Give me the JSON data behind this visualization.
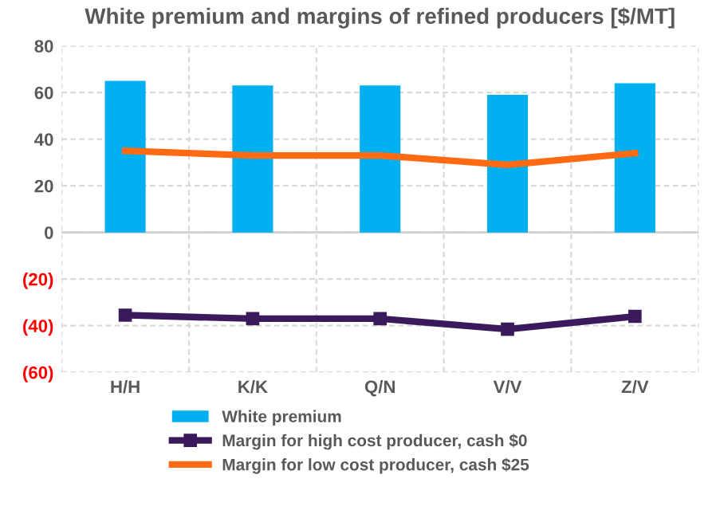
{
  "chart_data": {
    "type": "bar",
    "title": "White premium and margins of refined producers [$/MT]",
    "categories": [
      "H/H",
      "K/K",
      "Q/N",
      "V/V",
      "Z/V"
    ],
    "series": [
      {
        "name": "White premium",
        "color": "#00b0f0",
        "values": [
          65,
          63,
          63,
          59,
          64
        ]
      },
      {
        "name": "Margin for high cost producer, cash $0",
        "type": "line",
        "marker": "square",
        "color": "#3a1a5c",
        "values": [
          -35.5,
          -37,
          -37,
          -41.5,
          -36
        ]
      },
      {
        "name": "Margin for low cost producer, cash $25",
        "type": "line",
        "marker": "none",
        "color": "#ff6a13",
        "values": [
          35,
          33,
          33,
          29,
          34
        ]
      }
    ],
    "ylim": [
      -60,
      80
    ],
    "yticks": [
      {
        "value": -60,
        "label": "(60)"
      },
      {
        "value": -40,
        "label": "(40)"
      },
      {
        "value": -20,
        "label": "(20)"
      },
      0,
      20,
      40,
      60,
      80
    ],
    "grid": true,
    "legend": "bottom"
  }
}
